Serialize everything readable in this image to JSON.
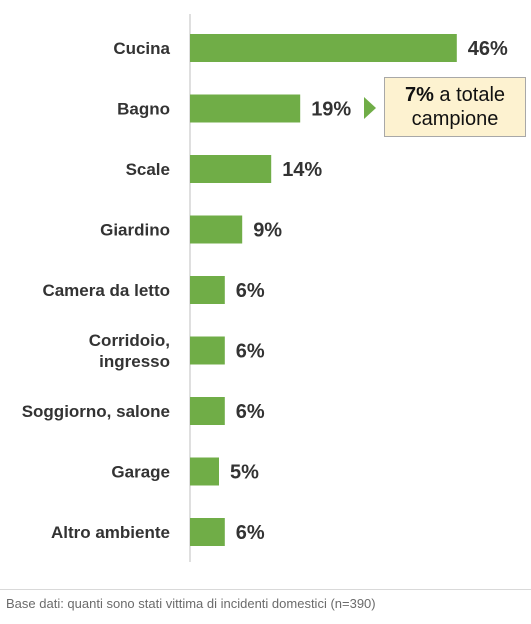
{
  "chart_data": {
    "type": "bar",
    "orientation": "horizontal",
    "categories": [
      "Cucina",
      "Bagno",
      "Scale",
      "Giardino",
      "Camera da letto",
      [
        "Corridoio,",
        "ingresso"
      ],
      "Soggiorno, salone",
      "Garage",
      "Altro ambiente"
    ],
    "values": [
      46,
      19,
      14,
      9,
      6,
      6,
      6,
      5,
      6
    ],
    "value_labels": [
      "46%",
      "19%",
      "14%",
      "9%",
      "6%",
      "6%",
      "6%",
      "5%",
      "6%"
    ],
    "unit": "%",
    "xlim": [
      0,
      50
    ],
    "bar_color": "#70ad47",
    "grid": false,
    "annotation": {
      "target_category": "Bagno",
      "value": "7%",
      "text": "a totale campione",
      "fill": "#fdf2d0",
      "arrow_color": "#70ad47"
    }
  },
  "footnote": "Base dati: quanti sono stati vittima di incidenti domestici (n=390)"
}
